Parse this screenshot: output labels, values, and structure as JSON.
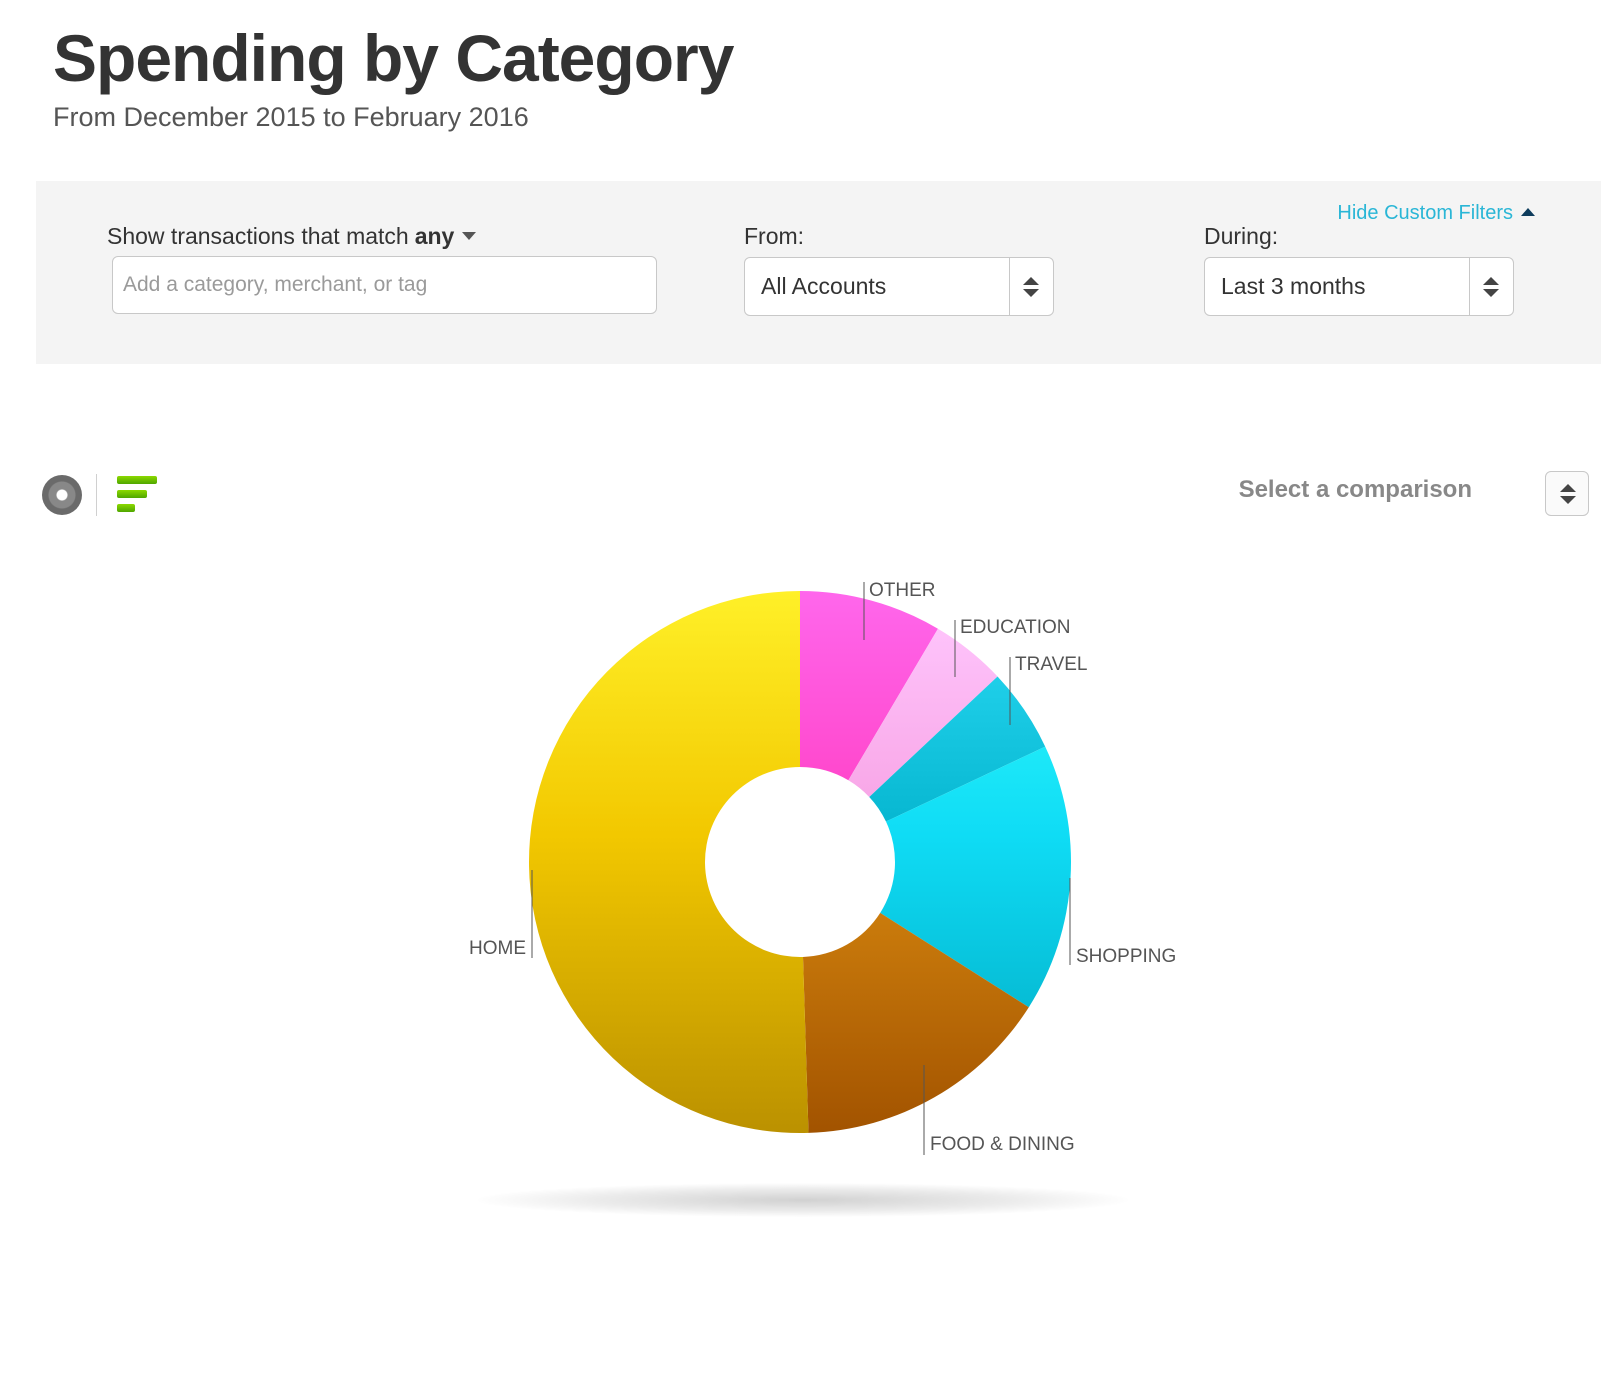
{
  "header": {
    "title": "Spending by Category",
    "subtitle": "From December 2015 to February 2016"
  },
  "filters": {
    "hide_link_label": "Hide Custom Filters",
    "match_label": "Show transactions that match",
    "match_value": "any",
    "search_placeholder": "Add a category, merchant, or tag",
    "from_label": "From:",
    "from_value": "All Accounts",
    "during_label": "During:",
    "during_value": "Last 3 months"
  },
  "toolbar": {
    "donut_icon": "donut-chart-icon",
    "bar_icon": "bar-chart-icon",
    "comparison_label": "Select a comparison"
  },
  "chart_data": {
    "type": "pie",
    "subtype": "donut",
    "title": "",
    "categories": [
      "OTHER",
      "EDUCATION",
      "TRAVEL",
      "SHOPPING",
      "FOOD & DINING",
      "HOME"
    ],
    "values": [
      8.5,
      4.5,
      5.0,
      16.0,
      15.5,
      50.5
    ],
    "unit": "percent of spending (estimated)",
    "colors": [
      "#ff3fc4",
      "#f7a1e3",
      "#05b5cf",
      "#0fdcf5",
      "#d98a10",
      "#f2c800"
    ],
    "legend": "none"
  }
}
